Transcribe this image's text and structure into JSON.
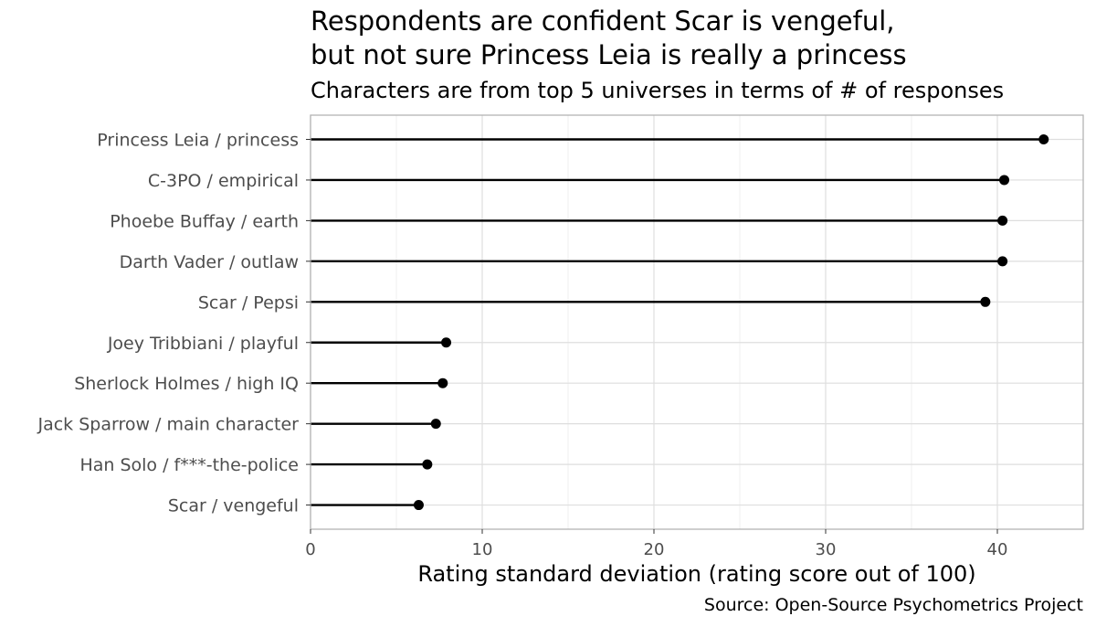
{
  "chart_data": {
    "type": "lollipop",
    "title_lines": [
      "Respondents are confident Scar is vengeful,",
      "but not sure Princess Leia is really a princess"
    ],
    "subtitle": "Characters are from top 5 universes in terms of # of responses",
    "xlabel": "Rating standard deviation (rating score out of 100)",
    "caption": "Source: Open-Source Psychometrics Project",
    "xlim": [
      0,
      45
    ],
    "xticks": [
      0,
      10,
      20,
      30,
      40
    ],
    "grid": true,
    "categories": [
      "Princess Leia / princess",
      "C-3PO / empirical",
      "Phoebe Buffay / earth",
      "Darth Vader / outlaw",
      "Scar / Pepsi",
      "Joey Tribbiani / playful",
      "Sherlock Holmes / high IQ",
      "Jack Sparrow / main character",
      "Han Solo / f***-the-police",
      "Scar / vengeful"
    ],
    "values": [
      42.7,
      40.4,
      40.3,
      40.3,
      39.3,
      7.9,
      7.7,
      7.3,
      6.8,
      6.3
    ],
    "colors": {
      "panel_border": "#b3b3b3",
      "grid_major": "#dedede",
      "grid_minor": "#efefef",
      "mark": "#000000"
    }
  }
}
